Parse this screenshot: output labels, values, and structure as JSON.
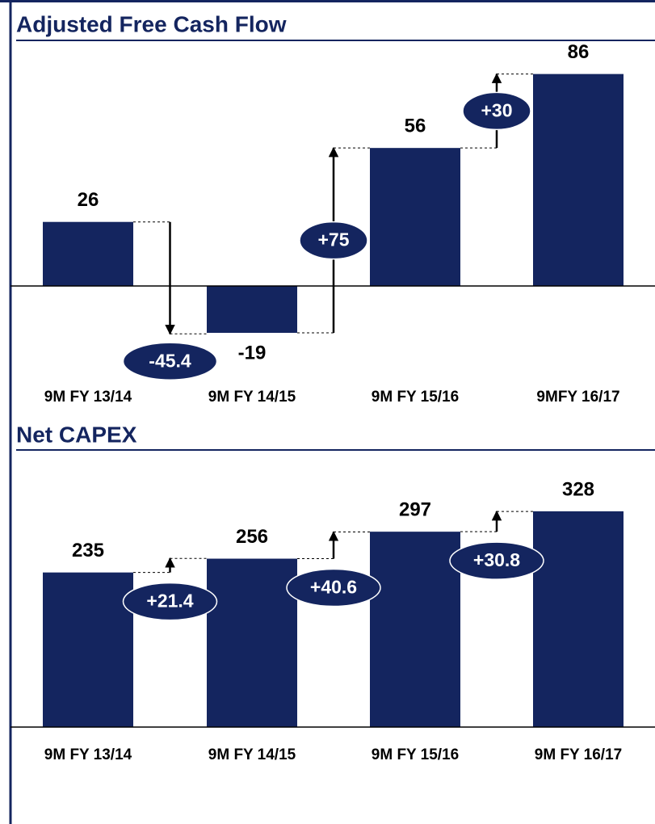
{
  "chart_data": [
    {
      "type": "bar",
      "title": "Adjusted Free Cash Flow",
      "categories": [
        "9M FY 13/14",
        "9M FY 14/15",
        "9M FY 15/16",
        "9MFY 16/17"
      ],
      "values": [
        26,
        -19,
        56,
        86
      ],
      "color": "#14255f",
      "changes": [
        -45.4,
        75,
        30
      ],
      "change_labels": [
        "-45.4",
        "+75",
        "+30"
      ],
      "ylim": [
        -38,
        98
      ]
    },
    {
      "type": "bar",
      "title": "Net CAPEX",
      "categories": [
        "9M FY 13/14",
        "9M FY 14/15",
        "9M FY 15/16",
        "9M FY 16/17"
      ],
      "values": [
        235,
        256,
        297,
        328
      ],
      "color": "#14255f",
      "changes": [
        21.4,
        40.6,
        30.8
      ],
      "change_labels": [
        "+21.4",
        "+40.6",
        "+30.8"
      ],
      "ylim": [
        0,
        420
      ]
    }
  ]
}
